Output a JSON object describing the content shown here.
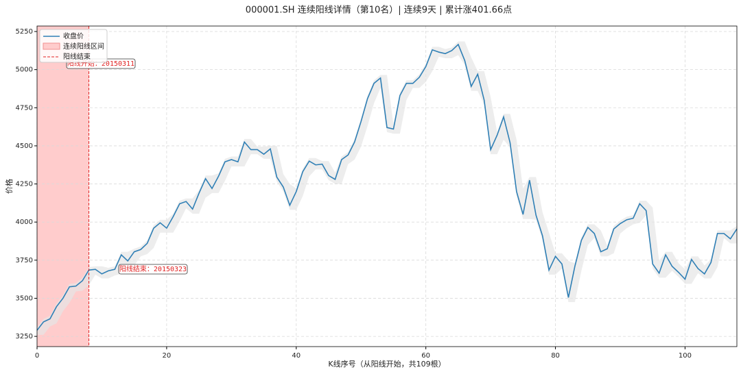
{
  "chart_data": {
    "type": "line",
    "title": "000001.SH 连续阳线详情（第10名）| 连续9天 | 累计涨401.66点",
    "xlabel": "K线序号（从阳线开始，共109根）",
    "ylabel": "价格",
    "xlim": [
      0,
      108
    ],
    "ylim": [
      3183,
      5286
    ],
    "xticks": [
      0,
      20,
      40,
      60,
      80,
      100
    ],
    "yticks": [
      3250,
      3500,
      3750,
      4000,
      4250,
      4500,
      4750,
      5000,
      5250
    ],
    "grid": true,
    "legend": "upper left",
    "x": [
      0,
      1,
      2,
      3,
      4,
      5,
      6,
      7,
      8,
      9,
      10,
      11,
      12,
      13,
      14,
      15,
      16,
      17,
      18,
      19,
      20,
      21,
      22,
      23,
      24,
      25,
      26,
      27,
      28,
      29,
      30,
      31,
      32,
      33,
      34,
      35,
      36,
      37,
      38,
      39,
      40,
      41,
      42,
      43,
      44,
      45,
      46,
      47,
      48,
      49,
      50,
      51,
      52,
      53,
      54,
      55,
      56,
      57,
      58,
      59,
      60,
      61,
      62,
      63,
      64,
      65,
      66,
      67,
      68,
      69,
      70,
      71,
      72,
      73,
      74,
      75,
      76,
      77,
      78,
      79,
      80,
      81,
      82,
      83,
      84,
      85,
      86,
      87,
      88,
      89,
      90,
      91,
      92,
      93,
      94,
      95,
      96,
      97,
      98,
      99,
      100,
      101,
      102,
      103,
      104,
      105,
      106,
      107,
      108
    ],
    "series": [
      {
        "name": "收盘价",
        "color": "#2f7fb5",
        "values": [
          3290,
          3345,
          3365,
          3445,
          3500,
          3575,
          3580,
          3615,
          3685,
          3690,
          3660,
          3680,
          3690,
          3785,
          3745,
          3805,
          3820,
          3860,
          3960,
          3995,
          3960,
          4035,
          4120,
          4135,
          4085,
          4190,
          4285,
          4220,
          4300,
          4395,
          4410,
          4395,
          4525,
          4475,
          4475,
          4445,
          4480,
          4295,
          4230,
          4110,
          4200,
          4330,
          4400,
          4375,
          4380,
          4305,
          4280,
          4410,
          4440,
          4525,
          4660,
          4810,
          4910,
          4945,
          4620,
          4610,
          4830,
          4910,
          4910,
          4950,
          5020,
          5130,
          5115,
          5105,
          5125,
          5165,
          5060,
          4890,
          4970,
          4800,
          4475,
          4570,
          4690,
          4520,
          4200,
          4050,
          4275,
          4045,
          3910,
          3685,
          3775,
          3725,
          3505,
          3710,
          3880,
          3965,
          3925,
          3805,
          3825,
          3955,
          3990,
          4015,
          4025,
          4120,
          4075,
          3725,
          3665,
          3785,
          3710,
          3670,
          3625,
          3755,
          3695,
          3660,
          3735,
          3925,
          3925,
          3890,
          3955
        ]
      }
    ],
    "band": {
      "color": "#e6e6e6",
      "high": [
        3310,
        3365,
        3385,
        3465,
        3520,
        3595,
        3600,
        3635,
        3705,
        3710,
        3710,
        3700,
        3710,
        3805,
        3805,
        3825,
        3840,
        3880,
        3980,
        4015,
        4015,
        4055,
        4140,
        4155,
        4155,
        4210,
        4305,
        4305,
        4320,
        4415,
        4430,
        4430,
        4545,
        4545,
        4495,
        4495,
        4500,
        4500,
        4315,
        4250,
        4220,
        4350,
        4420,
        4420,
        4400,
        4400,
        4325,
        4430,
        4460,
        4545,
        4680,
        4830,
        4930,
        4965,
        4965,
        4640,
        4850,
        4930,
        4930,
        4970,
        5040,
        5150,
        5150,
        5135,
        5145,
        5185,
        5185,
        5080,
        4990,
        4990,
        4820,
        4590,
        4710,
        4710,
        4540,
        4220,
        4295,
        4295,
        4065,
        3930,
        3795,
        3795,
        3745,
        3730,
        3900,
        3985,
        3985,
        3945,
        3845,
        3975,
        4010,
        4035,
        4045,
        4140,
        4140,
        4095,
        3745,
        3805,
        3805,
        3730,
        3690,
        3775,
        3775,
        3715,
        3755,
        3945,
        3945,
        3945,
        3975
      ],
      "low": [
        3260,
        3260,
        3315,
        3335,
        3415,
        3470,
        3545,
        3550,
        3585,
        3655,
        3630,
        3630,
        3650,
        3660,
        3715,
        3715,
        3775,
        3790,
        3830,
        3930,
        3930,
        3930,
        4005,
        4090,
        4055,
        4055,
        4160,
        4190,
        4190,
        4270,
        4365,
        4365,
        4365,
        4445,
        4445,
        4415,
        4415,
        4265,
        4200,
        4080,
        4080,
        4170,
        4300,
        4345,
        4345,
        4275,
        4250,
        4250,
        4380,
        4410,
        4495,
        4630,
        4780,
        4880,
        4590,
        4580,
        4580,
        4800,
        4880,
        4880,
        4920,
        4990,
        5085,
        5075,
        5075,
        5095,
        5030,
        4860,
        4860,
        4770,
        4445,
        4445,
        4540,
        4490,
        4170,
        4020,
        4020,
        4015,
        3880,
        3655,
        3655,
        3695,
        3475,
        3475,
        3680,
        3850,
        3895,
        3775,
        3775,
        3795,
        3925,
        3960,
        3985,
        3995,
        4045,
        3695,
        3635,
        3635,
        3680,
        3640,
        3595,
        3595,
        3665,
        3630,
        3630,
        3705,
        3895,
        3860,
        3860
      ]
    },
    "highlight": {
      "name": "连续阳线区间",
      "xlim": [
        0,
        8
      ],
      "color": "#ffcccc"
    },
    "vline": {
      "name": "阳线结束",
      "x": 8,
      "color": "#e02020"
    },
    "annotations": [
      "阳线开始：20150311",
      "阳线结束：20150323"
    ]
  }
}
